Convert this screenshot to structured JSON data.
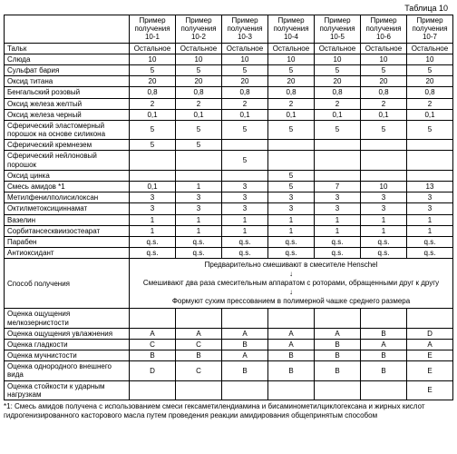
{
  "caption": "Таблица 10",
  "headers": [
    "Пример получения 10-1",
    "Пример получения 10-2",
    "Пример получения 10-3",
    "Пример получения 10-4",
    "Пример получения 10-5",
    "Пример получения 10-6",
    "Пример получения 10-7"
  ],
  "rows": [
    {
      "label": "Тальк",
      "cells": [
        "Остальное",
        "Остальное",
        "Остальное",
        "Остальное",
        "Остальное",
        "Остальное",
        "Остальное"
      ]
    },
    {
      "label": "Слюда",
      "cells": [
        "10",
        "10",
        "10",
        "10",
        "10",
        "10",
        "10"
      ]
    },
    {
      "label": "Сульфат бария",
      "cells": [
        "5",
        "5",
        "5",
        "5",
        "5",
        "5",
        "5"
      ]
    },
    {
      "label": "Оксид титана",
      "cells": [
        "20",
        "20",
        "20",
        "20",
        "20",
        "20",
        "20"
      ]
    },
    {
      "label": "Бенгальский розовый",
      "cells": [
        "0,8",
        "0,8",
        "0,8",
        "0,8",
        "0,8",
        "0,8",
        "0,8"
      ]
    },
    {
      "label": "Оксид железа желтый",
      "cells": [
        "2",
        "2",
        "2",
        "2",
        "2",
        "2",
        "2"
      ]
    },
    {
      "label": "Оксид железа черный",
      "cells": [
        "0,1",
        "0,1",
        "0,1",
        "0,1",
        "0,1",
        "0,1",
        "0,1"
      ]
    },
    {
      "label": "Сферический эластомерный порошок на основе силикона",
      "cells": [
        "5",
        "5",
        "5",
        "5",
        "5",
        "5",
        "5"
      ]
    },
    {
      "label": "Сферический кремнезем",
      "cells": [
        "5",
        "5",
        "",
        "",
        "",
        "",
        ""
      ]
    },
    {
      "label": "Сферический нейлоновый порошок",
      "cells": [
        "",
        "",
        "5",
        "",
        "",
        "",
        ""
      ]
    },
    {
      "label": "Оксид цинка",
      "cells": [
        "",
        "",
        "",
        "5",
        "",
        "",
        ""
      ]
    },
    {
      "label": "Смесь амидов *1",
      "cells": [
        "0,1",
        "1",
        "3",
        "5",
        "7",
        "10",
        "13"
      ]
    },
    {
      "label": "Метилфенилполисилоксан",
      "cells": [
        "3",
        "3",
        "3",
        "3",
        "3",
        "3",
        "3"
      ]
    },
    {
      "label": "Октилметоксициннамат",
      "cells": [
        "3",
        "3",
        "3",
        "3",
        "3",
        "3",
        "3"
      ]
    },
    {
      "label": "Вазелин",
      "cells": [
        "1",
        "1",
        "1",
        "1",
        "1",
        "1",
        "1"
      ]
    },
    {
      "label": "Сорбитансесквиизостеарат",
      "cells": [
        "1",
        "1",
        "1",
        "1",
        "1",
        "1",
        "1"
      ]
    },
    {
      "label": "Парабен",
      "cells": [
        "q.s.",
        "q.s.",
        "q.s.",
        "q.s.",
        "q.s.",
        "q.s.",
        "q.s."
      ]
    },
    {
      "label": "Антиоксидант",
      "cells": [
        "q.s.",
        "q.s.",
        "q.s.",
        "q.s.",
        "q.s.",
        "q.s.",
        "q.s."
      ]
    }
  ],
  "method_label": "Способ получения",
  "method_lines": [
    "Предварительно смешивают в смесителе Henschel",
    "↓",
    "Смешивают два раза смесительным аппаратом с роторами, обращенными друг к другу",
    "↓",
    "Формуют сухим прессованием в полимерной чашке среднего размера"
  ],
  "eval_rows": [
    {
      "label": "Оценка ощущения мелкозернистости",
      "cells": [
        "",
        "",
        "",
        "",
        "",
        "",
        ""
      ]
    },
    {
      "label": "Оценка ощущения увлажнения",
      "cells": [
        "A",
        "A",
        "A",
        "A",
        "A",
        "B",
        "D"
      ]
    },
    {
      "label": "Оценка гладкости",
      "cells": [
        "C",
        "C",
        "B",
        "A",
        "B",
        "A",
        "A"
      ]
    },
    {
      "label": "Оценка мучнистости",
      "cells": [
        "B",
        "B",
        "A",
        "B",
        "B",
        "B",
        "E"
      ]
    },
    {
      "label": "Оценка однородного внешнего вида",
      "cells": [
        "D",
        "C",
        "B",
        "B",
        "B",
        "B",
        "E"
      ]
    },
    {
      "label": "Оценка стойкости к ударным нагрузкам",
      "cells": [
        "",
        "",
        "",
        "",
        "",
        "",
        "E"
      ]
    }
  ],
  "footnote": "*1: Смесь амидов получена с использованием смеси гексаметилендиамина и бисаминометилциклогексана и жирных кислот гидрогенизированного касторового масла путем проведения реакции амидирования общепринятым способом"
}
